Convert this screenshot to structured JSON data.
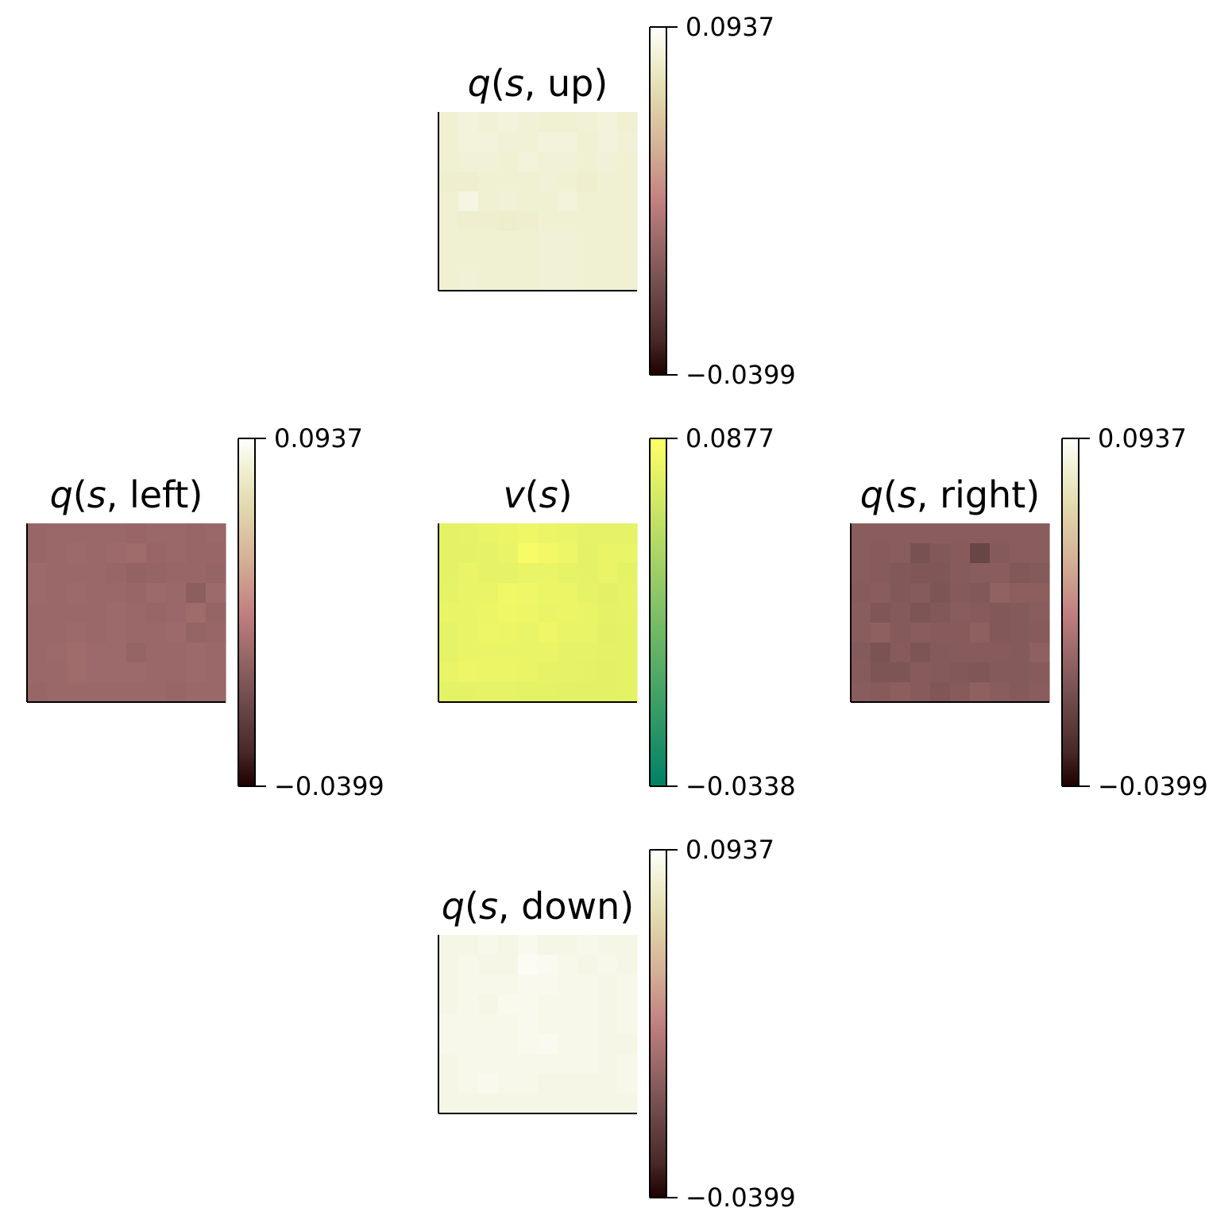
{
  "figure": {
    "background": "#ffffff"
  },
  "chart_data": [
    {
      "id": "q_up",
      "type": "heatmap",
      "title_parts": [
        {
          "text": "q",
          "italic": true
        },
        {
          "text": "(",
          "italic": false
        },
        {
          "text": "s",
          "italic": true
        },
        {
          "text": ", up)",
          "italic": false
        }
      ],
      "colormap": "pink",
      "vmin": -0.0399,
      "vmax": 0.0937,
      "colorbar_ticks": [
        "0.0937",
        "−0.0399"
      ],
      "grid_size": [
        9,
        10
      ],
      "values": [
        [
          0.082,
          0.084,
          0.083,
          0.084,
          0.083,
          0.082,
          0.082,
          0.083,
          0.084,
          0.082
        ],
        [
          0.082,
          0.084,
          0.084,
          0.083,
          0.083,
          0.084,
          0.084,
          0.082,
          0.084,
          0.083
        ],
        [
          0.082,
          0.083,
          0.083,
          0.082,
          0.084,
          0.083,
          0.083,
          0.082,
          0.083,
          0.082
        ],
        [
          0.081,
          0.081,
          0.082,
          0.082,
          0.082,
          0.083,
          0.082,
          0.081,
          0.082,
          0.082
        ],
        [
          0.082,
          0.086,
          0.082,
          0.083,
          0.082,
          0.082,
          0.084,
          0.082,
          0.082,
          0.082
        ],
        [
          0.082,
          0.081,
          0.081,
          0.08,
          0.081,
          0.082,
          0.082,
          0.082,
          0.082,
          0.082
        ],
        [
          0.082,
          0.082,
          0.082,
          0.082,
          0.082,
          0.083,
          0.083,
          0.082,
          0.082,
          0.082
        ],
        [
          0.082,
          0.082,
          0.082,
          0.082,
          0.082,
          0.083,
          0.083,
          0.082,
          0.082,
          0.082
        ],
        [
          0.082,
          0.083,
          0.082,
          0.082,
          0.082,
          0.083,
          0.083,
          0.082,
          0.082,
          0.082
        ]
      ]
    },
    {
      "id": "q_left",
      "type": "heatmap",
      "title_parts": [
        {
          "text": "q",
          "italic": true
        },
        {
          "text": "(",
          "italic": false
        },
        {
          "text": "s",
          "italic": true
        },
        {
          "text": ", left)",
          "italic": false
        }
      ],
      "colormap": "pink",
      "vmin": -0.0399,
      "vmax": 0.0937,
      "colorbar_ticks": [
        "0.0937",
        "−0.0399"
      ],
      "grid_size": [
        9,
        10
      ],
      "values": [
        [
          0.01,
          0.011,
          0.011,
          0.011,
          0.011,
          0.01,
          0.011,
          0.011,
          0.01,
          0.011
        ],
        [
          0.01,
          0.011,
          0.012,
          0.011,
          0.012,
          0.013,
          0.01,
          0.011,
          0.01,
          0.01
        ],
        [
          0.012,
          0.011,
          0.011,
          0.011,
          0.01,
          0.008,
          0.009,
          0.01,
          0.01,
          0.009
        ],
        [
          0.012,
          0.011,
          0.012,
          0.011,
          0.011,
          0.01,
          0.012,
          0.011,
          0.005,
          0.012
        ],
        [
          0.011,
          0.011,
          0.011,
          0.011,
          0.012,
          0.011,
          0.01,
          0.011,
          0.013,
          0.009
        ],
        [
          0.011,
          0.011,
          0.012,
          0.011,
          0.012,
          0.011,
          0.011,
          0.012,
          0.009,
          0.01
        ],
        [
          0.011,
          0.012,
          0.013,
          0.012,
          0.012,
          0.009,
          0.011,
          0.011,
          0.012,
          0.011
        ],
        [
          0.011,
          0.011,
          0.013,
          0.012,
          0.012,
          0.012,
          0.011,
          0.011,
          0.012,
          0.011
        ],
        [
          0.01,
          0.011,
          0.011,
          0.011,
          0.011,
          0.011,
          0.011,
          0.01,
          0.011,
          0.011
        ]
      ]
    },
    {
      "id": "v",
      "type": "heatmap",
      "title_parts": [
        {
          "text": "v",
          "italic": true
        },
        {
          "text": "(",
          "italic": false
        },
        {
          "text": "s",
          "italic": true
        },
        {
          "text": ")",
          "italic": false
        }
      ],
      "colormap": "summer",
      "vmin": -0.0338,
      "vmax": 0.0877,
      "colorbar_ticks": [
        "0.0877",
        "−0.0338"
      ],
      "grid_size": [
        9,
        10
      ],
      "values": [
        [
          0.075,
          0.076,
          0.077,
          0.078,
          0.08,
          0.078,
          0.077,
          0.076,
          0.076,
          0.076
        ],
        [
          0.075,
          0.075,
          0.076,
          0.077,
          0.084,
          0.082,
          0.079,
          0.075,
          0.077,
          0.077
        ],
        [
          0.075,
          0.077,
          0.076,
          0.076,
          0.077,
          0.077,
          0.076,
          0.075,
          0.077,
          0.075
        ],
        [
          0.076,
          0.077,
          0.077,
          0.081,
          0.08,
          0.078,
          0.078,
          0.076,
          0.074,
          0.076
        ],
        [
          0.077,
          0.077,
          0.078,
          0.08,
          0.079,
          0.077,
          0.078,
          0.077,
          0.075,
          0.076
        ],
        [
          0.076,
          0.077,
          0.079,
          0.078,
          0.077,
          0.08,
          0.077,
          0.077,
          0.074,
          0.075
        ],
        [
          0.076,
          0.077,
          0.077,
          0.077,
          0.077,
          0.077,
          0.076,
          0.076,
          0.075,
          0.075
        ],
        [
          0.077,
          0.079,
          0.078,
          0.078,
          0.077,
          0.076,
          0.076,
          0.075,
          0.074,
          0.075
        ],
        [
          0.075,
          0.075,
          0.076,
          0.076,
          0.075,
          0.075,
          0.074,
          0.074,
          0.074,
          0.075
        ]
      ]
    },
    {
      "id": "q_right",
      "type": "heatmap",
      "title_parts": [
        {
          "text": "q",
          "italic": true
        },
        {
          "text": "(",
          "italic": false
        },
        {
          "text": "s",
          "italic": true
        },
        {
          "text": ", right)",
          "italic": false
        }
      ],
      "colormap": "pink",
      "vmin": -0.0399,
      "vmax": 0.0937,
      "colorbar_ticks": [
        "0.0937",
        "−0.0399"
      ],
      "grid_size": [
        9,
        10
      ],
      "values": [
        [
          0.004,
          0.004,
          0.004,
          0.004,
          0.004,
          0.004,
          0.004,
          0.004,
          0.004,
          0.004
        ],
        [
          0.004,
          0.003,
          0.004,
          -0.003,
          0.001,
          0.003,
          -0.01,
          0.002,
          0.004,
          0.004
        ],
        [
          0.004,
          0.003,
          0.001,
          0.0,
          0.0,
          0.003,
          0.004,
          0.004,
          0.001,
          0.002
        ],
        [
          0.003,
          0.004,
          0.001,
          0.003,
          -0.001,
          0.002,
          0.001,
          0.007,
          0.005,
          0.005
        ],
        [
          0.004,
          0.0,
          0.002,
          -0.001,
          0.001,
          0.004,
          0.003,
          0.001,
          0.002,
          0.004
        ],
        [
          0.004,
          0.006,
          0.002,
          0.004,
          0.003,
          0.003,
          0.006,
          0.001,
          0.002,
          0.003
        ],
        [
          0.002,
          -0.002,
          0.003,
          -0.001,
          0.002,
          0.003,
          0.003,
          0.003,
          0.002,
          0.006
        ],
        [
          0.003,
          -0.001,
          -0.001,
          0.003,
          0.002,
          0.001,
          0.0,
          0.002,
          0.002,
          0.003
        ],
        [
          0.004,
          0.003,
          0.005,
          0.003,
          0.0,
          0.003,
          0.006,
          0.004,
          0.002,
          0.004
        ]
      ]
    },
    {
      "id": "q_down",
      "type": "heatmap",
      "title_parts": [
        {
          "text": "q",
          "italic": true
        },
        {
          "text": "(",
          "italic": false
        },
        {
          "text": "s",
          "italic": true
        },
        {
          "text": ", down)",
          "italic": false
        }
      ],
      "colormap": "pink",
      "vmin": -0.0399,
      "vmax": 0.0937,
      "colorbar_ticks": [
        "0.0937",
        "−0.0399"
      ],
      "grid_size": [
        9,
        10
      ],
      "values": [
        [
          0.087,
          0.087,
          0.088,
          0.087,
          0.089,
          0.087,
          0.087,
          0.088,
          0.087,
          0.087
        ],
        [
          0.087,
          0.088,
          0.087,
          0.087,
          0.091,
          0.09,
          0.088,
          0.087,
          0.088,
          0.087
        ],
        [
          0.087,
          0.088,
          0.088,
          0.088,
          0.089,
          0.089,
          0.088,
          0.088,
          0.087,
          0.088
        ],
        [
          0.087,
          0.088,
          0.087,
          0.089,
          0.089,
          0.088,
          0.088,
          0.088,
          0.087,
          0.088
        ],
        [
          0.088,
          0.088,
          0.088,
          0.088,
          0.089,
          0.088,
          0.088,
          0.088,
          0.087,
          0.088
        ],
        [
          0.088,
          0.088,
          0.088,
          0.088,
          0.089,
          0.09,
          0.088,
          0.088,
          0.087,
          0.087
        ],
        [
          0.087,
          0.088,
          0.088,
          0.088,
          0.088,
          0.088,
          0.088,
          0.088,
          0.087,
          0.088
        ],
        [
          0.087,
          0.088,
          0.089,
          0.088,
          0.088,
          0.087,
          0.087,
          0.087,
          0.087,
          0.088
        ],
        [
          0.087,
          0.087,
          0.087,
          0.087,
          0.087,
          0.087,
          0.087,
          0.087,
          0.087,
          0.087
        ]
      ]
    }
  ]
}
